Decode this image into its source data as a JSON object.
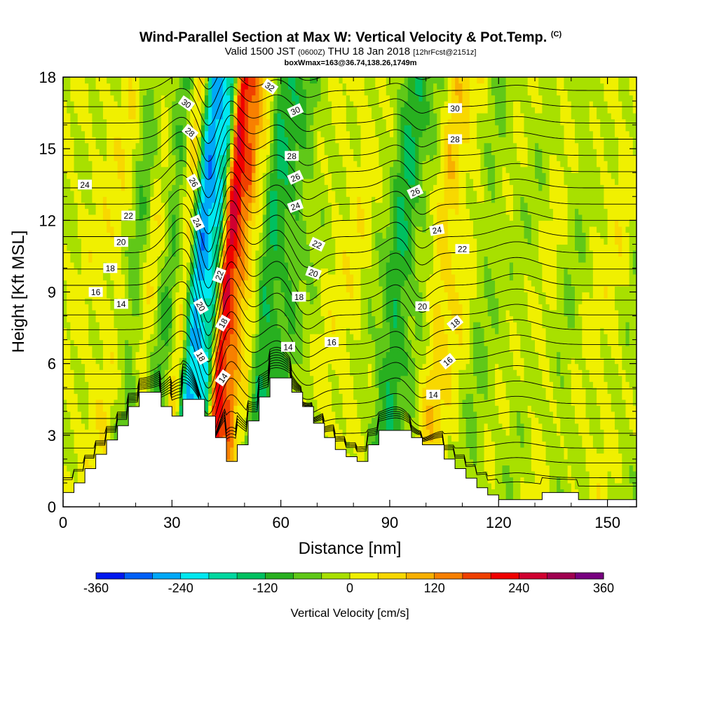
{
  "header": {
    "title": "Wind-Parallel Section at Max W: Vertical Velocity & Pot.Temp.",
    "title_mark": "(C)",
    "valid_prefix": "Valid 1500 JST",
    "valid_zulu": "(0600Z)",
    "valid_date": "THU 18 Jan 2018",
    "forecast_tag": "[12hrFcst@2151z]",
    "box_info": "boxWmax=163@36.74,138.26,1749m"
  },
  "chart_data": {
    "type": "heatmap",
    "xlabel": "Distance [nm]",
    "ylabel": "Height [Kft MSL]",
    "xlim": [
      0,
      158
    ],
    "ylim": [
      0,
      18
    ],
    "x_ticks": [
      "0",
      "30",
      "60",
      "90",
      "120",
      "150"
    ],
    "y_ticks": [
      "0",
      "3",
      "6",
      "9",
      "12",
      "15",
      "18"
    ],
    "colorbar": {
      "title": "Vertical Velocity [cm/s]",
      "min": -360,
      "max": 360,
      "step": 40,
      "tick_labels": [
        "-360",
        "-240",
        "-120",
        "0",
        "120",
        "240",
        "360"
      ],
      "colors": [
        "#0018f0",
        "#0060f8",
        "#00a8f8",
        "#00e8f0",
        "#00d8a0",
        "#00c060",
        "#28b020",
        "#60c818",
        "#a8e000",
        "#f0f000",
        "#f8d800",
        "#f8b000",
        "#f88000",
        "#f04000",
        "#f00000",
        "#d00030",
        "#a00050",
        "#780080"
      ]
    },
    "terrain": [
      [
        0,
        0.6
      ],
      [
        3,
        0.6
      ],
      [
        3,
        1.0
      ],
      [
        6,
        1.0
      ],
      [
        6,
        1.6
      ],
      [
        9,
        1.6
      ],
      [
        9,
        2.2
      ],
      [
        12,
        2.2
      ],
      [
        12,
        2.8
      ],
      [
        15,
        2.8
      ],
      [
        15,
        3.4
      ],
      [
        18,
        3.4
      ],
      [
        18,
        4.2
      ],
      [
        21,
        4.2
      ],
      [
        21,
        4.8
      ],
      [
        27,
        4.8
      ],
      [
        27,
        4.2
      ],
      [
        30,
        4.2
      ],
      [
        30,
        3.8
      ],
      [
        33,
        3.8
      ],
      [
        33,
        4.5
      ],
      [
        39,
        4.5
      ],
      [
        39,
        3.8
      ],
      [
        42,
        3.8
      ],
      [
        42,
        2.9
      ],
      [
        45,
        2.9
      ],
      [
        45,
        1.9
      ],
      [
        48,
        1.9
      ],
      [
        48,
        2.6
      ],
      [
        51,
        2.6
      ],
      [
        51,
        3.6
      ],
      [
        54,
        3.6
      ],
      [
        54,
        4.6
      ],
      [
        57,
        4.6
      ],
      [
        57,
        5.4
      ],
      [
        63,
        5.4
      ],
      [
        63,
        4.8
      ],
      [
        66,
        4.8
      ],
      [
        66,
        4.2
      ],
      [
        69,
        4.2
      ],
      [
        69,
        3.5
      ],
      [
        72,
        3.5
      ],
      [
        72,
        2.9
      ],
      [
        75,
        2.9
      ],
      [
        75,
        2.4
      ],
      [
        78,
        2.4
      ],
      [
        78,
        2.1
      ],
      [
        81,
        2.1
      ],
      [
        81,
        1.9
      ],
      [
        84,
        1.9
      ],
      [
        84,
        2.6
      ],
      [
        87,
        2.6
      ],
      [
        87,
        3.2
      ],
      [
        96,
        3.2
      ],
      [
        96,
        2.9
      ],
      [
        99,
        2.9
      ],
      [
        99,
        2.6
      ],
      [
        105,
        2.6
      ],
      [
        105,
        2.0
      ],
      [
        108,
        2.0
      ],
      [
        108,
        1.6
      ],
      [
        111,
        1.6
      ],
      [
        111,
        1.2
      ],
      [
        114,
        1.2
      ],
      [
        114,
        0.8
      ],
      [
        117,
        0.8
      ],
      [
        117,
        0.5
      ],
      [
        120,
        0.5
      ],
      [
        120,
        0.3
      ],
      [
        132,
        0.3
      ],
      [
        132,
        0.6
      ],
      [
        142,
        0.6
      ],
      [
        142,
        0.3
      ],
      [
        158,
        0.3
      ]
    ],
    "w_bands": [
      {
        "x": 0,
        "w": 0
      },
      {
        "x": 8,
        "w": 10
      },
      {
        "x": 14,
        "w": 25
      },
      {
        "x": 20,
        "w": -60
      },
      {
        "x": 24,
        "w": 20
      },
      {
        "x": 29,
        "w": -80
      },
      {
        "x": 33,
        "w": 40
      },
      {
        "x": 37,
        "w": -260
      },
      {
        "x": 41,
        "w": -200
      },
      {
        "x": 45,
        "w": 240
      },
      {
        "x": 48,
        "w": 150
      },
      {
        "x": 52,
        "w": 30
      },
      {
        "x": 56,
        "w": -120
      },
      {
        "x": 62,
        "w": -80
      },
      {
        "x": 68,
        "w": -20
      },
      {
        "x": 74,
        "w": 10
      },
      {
        "x": 80,
        "w": 20
      },
      {
        "x": 86,
        "w": -20
      },
      {
        "x": 92,
        "w": -120
      },
      {
        "x": 98,
        "w": -40
      },
      {
        "x": 104,
        "w": 60
      },
      {
        "x": 110,
        "w": 20
      },
      {
        "x": 116,
        "w": -40
      },
      {
        "x": 122,
        "w": -10
      },
      {
        "x": 128,
        "w": -20
      },
      {
        "x": 134,
        "w": 10
      },
      {
        "x": 140,
        "w": -30
      },
      {
        "x": 146,
        "w": 5
      },
      {
        "x": 152,
        "w": 15
      },
      {
        "x": 158,
        "w": -20
      }
    ],
    "contour_labels": [
      {
        "text": "30",
        "x": 34,
        "y": 16.9,
        "rot": 35
      },
      {
        "text": "28",
        "x": 35,
        "y": 15.7,
        "rot": 40
      },
      {
        "text": "26",
        "x": 36,
        "y": 13.6,
        "rot": 60
      },
      {
        "text": "24",
        "x": 37,
        "y": 11.9,
        "rot": 65
      },
      {
        "text": "22",
        "x": 43,
        "y": 9.7,
        "rot": -70
      },
      {
        "text": "20",
        "x": 38,
        "y": 8.4,
        "rot": 60
      },
      {
        "text": "18",
        "x": 38,
        "y": 6.3,
        "rot": 60
      },
      {
        "text": "18",
        "x": 44,
        "y": 7.7,
        "rot": -60
      },
      {
        "text": "14",
        "x": 44,
        "y": 5.4,
        "rot": -55
      },
      {
        "text": "32",
        "x": 57,
        "y": 17.6,
        "rot": 35
      },
      {
        "text": "30",
        "x": 64,
        "y": 16.6,
        "rot": -25
      },
      {
        "text": "28",
        "x": 63,
        "y": 14.7,
        "rot": 0
      },
      {
        "text": "26",
        "x": 64,
        "y": 13.8,
        "rot": -25
      },
      {
        "text": "24",
        "x": 64,
        "y": 12.6,
        "rot": -20
      },
      {
        "text": "22",
        "x": 70,
        "y": 11.0,
        "rot": 25
      },
      {
        "text": "20",
        "x": 69,
        "y": 9.8,
        "rot": 20
      },
      {
        "text": "18",
        "x": 65,
        "y": 8.8,
        "rot": 0
      },
      {
        "text": "16",
        "x": 74,
        "y": 6.9,
        "rot": 0
      },
      {
        "text": "14",
        "x": 62,
        "y": 6.7,
        "rot": 0
      },
      {
        "text": "24",
        "x": 6,
        "y": 13.5,
        "rot": 0
      },
      {
        "text": "22",
        "x": 18,
        "y": 12.2,
        "rot": 0
      },
      {
        "text": "20",
        "x": 16,
        "y": 11.1,
        "rot": 0
      },
      {
        "text": "18",
        "x": 13,
        "y": 10.0,
        "rot": 0
      },
      {
        "text": "16",
        "x": 9,
        "y": 9.0,
        "rot": 0
      },
      {
        "text": "14",
        "x": 16,
        "y": 8.5,
        "rot": 0
      },
      {
        "text": "30",
        "x": 108,
        "y": 16.7,
        "rot": 0
      },
      {
        "text": "28",
        "x": 108,
        "y": 15.4,
        "rot": 0
      },
      {
        "text": "26",
        "x": 97,
        "y": 13.2,
        "rot": -25
      },
      {
        "text": "24",
        "x": 103,
        "y": 11.6,
        "rot": -10
      },
      {
        "text": "22",
        "x": 110,
        "y": 10.8,
        "rot": 0
      },
      {
        "text": "20",
        "x": 99,
        "y": 8.4,
        "rot": 0
      },
      {
        "text": "18",
        "x": 108,
        "y": 7.7,
        "rot": -40
      },
      {
        "text": "16",
        "x": 106,
        "y": 6.1,
        "rot": -40
      },
      {
        "text": "14",
        "x": 102,
        "y": 4.7,
        "rot": 0
      }
    ]
  }
}
